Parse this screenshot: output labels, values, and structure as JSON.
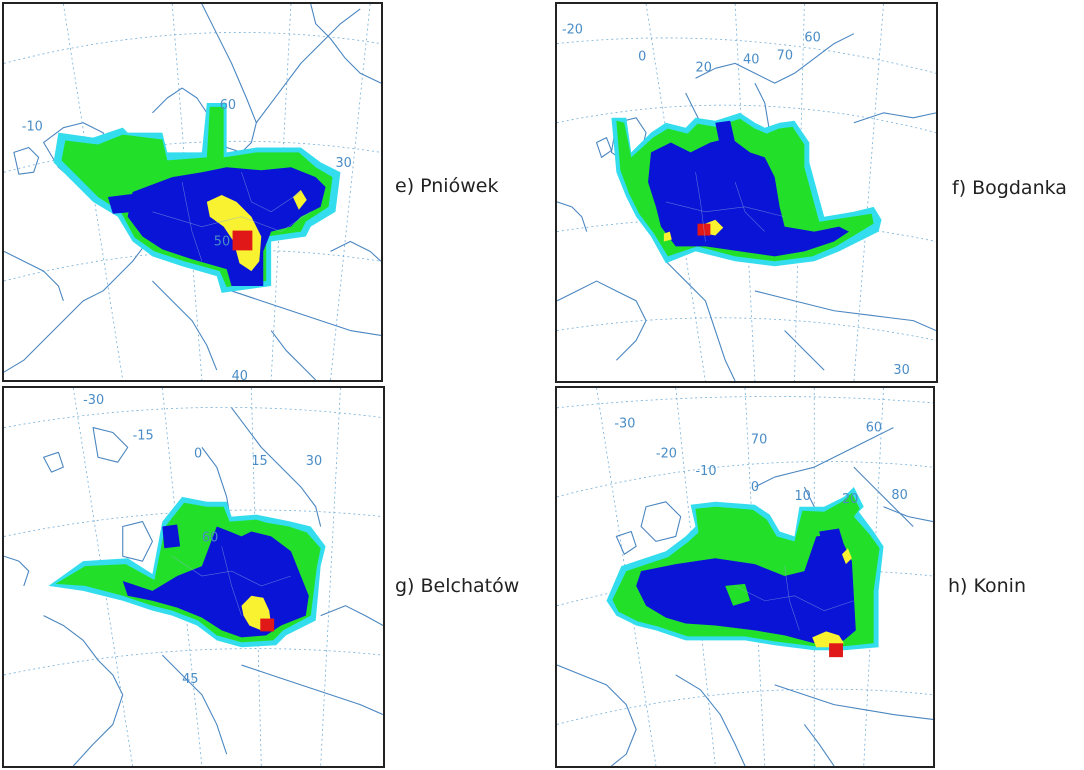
{
  "colors": {
    "cyan": "#33ddee",
    "green": "#22e02a",
    "blue": "#0a14d6",
    "yellow": "#f8f230",
    "red": "#e01818",
    "coast": "#4a86c0",
    "grid": "#5a9fd0"
  },
  "panels": [
    {
      "id": "e",
      "caption": "e) Pniówek",
      "grid_labels": [
        "-10",
        "60",
        "30",
        "50",
        "40"
      ]
    },
    {
      "id": "f",
      "caption": "f) Bogdanka",
      "grid_labels": [
        "-20",
        "0",
        "20",
        "40",
        "70",
        "60",
        "30"
      ]
    },
    {
      "id": "g",
      "caption": "g) Belchatów",
      "grid_labels": [
        "-30",
        "-15",
        "0",
        "15",
        "30",
        "60",
        "45"
      ]
    },
    {
      "id": "h",
      "caption": "h) Konin",
      "grid_labels": [
        "-30",
        "-20",
        "-10",
        "0",
        "10",
        "20",
        "70",
        "80",
        "60"
      ]
    }
  ]
}
